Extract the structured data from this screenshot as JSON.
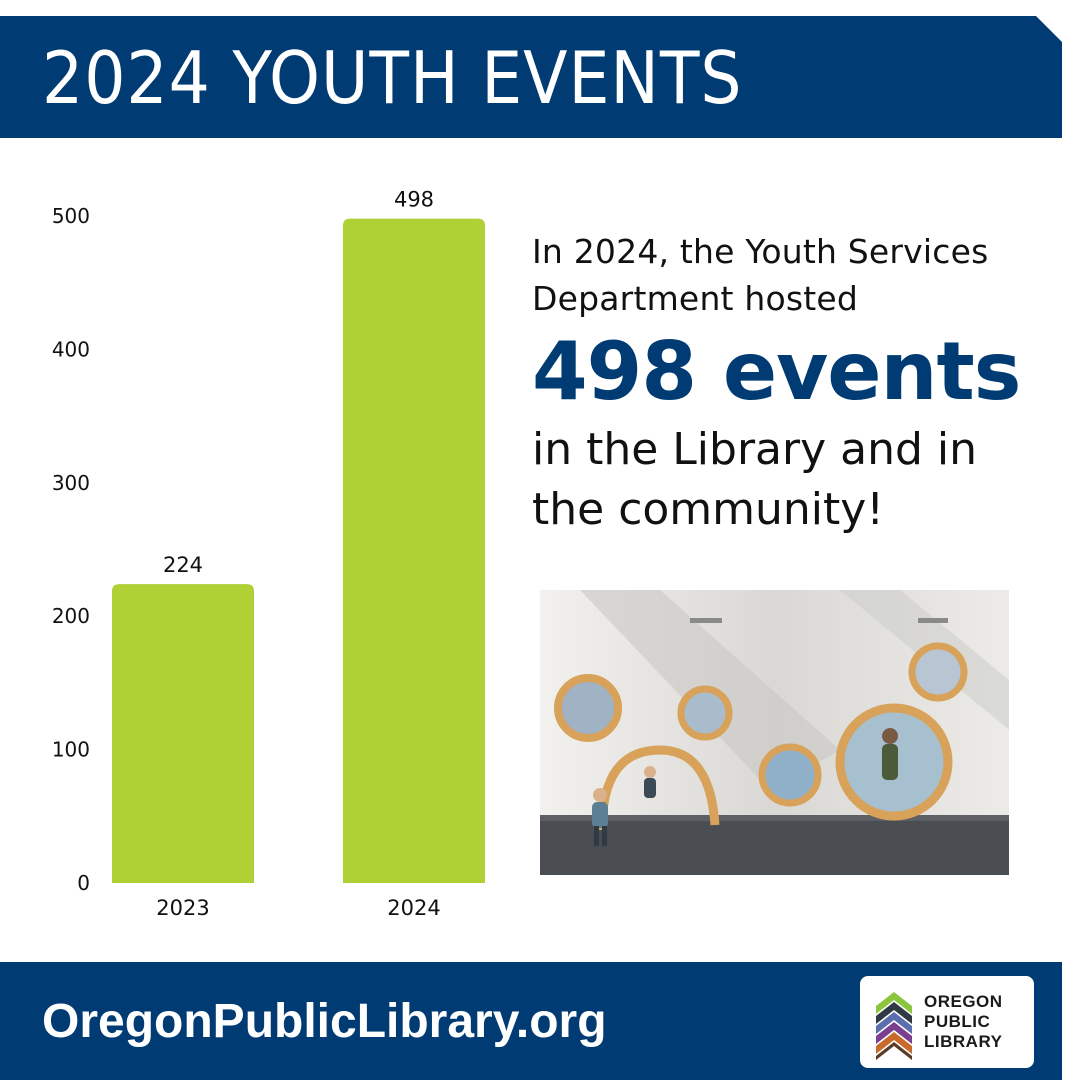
{
  "header": {
    "title": "2024 YOUTH EVENTS"
  },
  "chart_data": {
    "type": "bar",
    "categories": [
      "2023",
      "2024"
    ],
    "values": [
      224,
      498
    ],
    "data_labels": [
      "224",
      "498"
    ],
    "yticks": [
      0,
      100,
      200,
      300,
      400,
      500
    ],
    "ylim": [
      0,
      500
    ],
    "bar_color": "#b0d136",
    "grid": false,
    "title": "",
    "xlabel": "",
    "ylabel": ""
  },
  "blurb": {
    "intro": "In 2024, the Youth Services Department hosted",
    "highlight": "498 events",
    "outro": "in the Library and in the community!"
  },
  "photo": {
    "subject": "children-playing-circular-windows-photo"
  },
  "footer": {
    "url": "OregonPublicLibrary.org",
    "logo_lines": [
      "OREGON",
      "PUBLIC",
      "LIBRARY"
    ]
  },
  "colors": {
    "navy": "#003b73",
    "lime": "#b0d136"
  }
}
